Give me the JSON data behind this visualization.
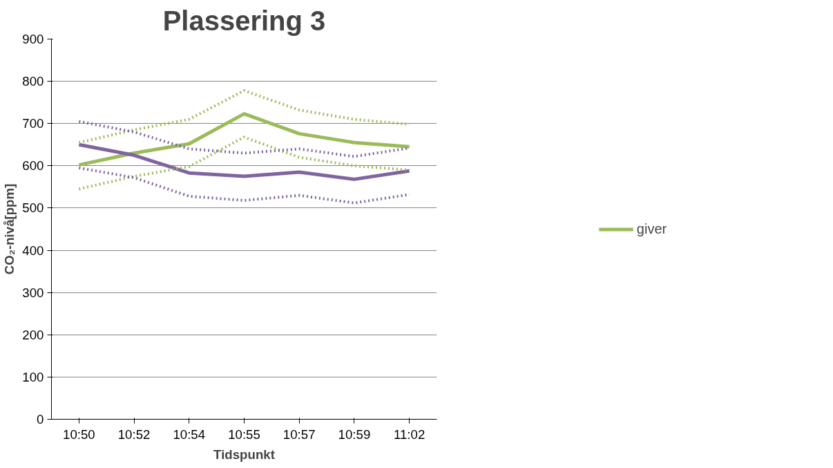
{
  "chart_data": {
    "type": "line",
    "title": "Plassering 3",
    "xlabel": "Tidspunkt",
    "ylabel": "CO₂-nivå[ppm]",
    "categories": [
      "10:50",
      "10:52",
      "10:54",
      "10:55",
      "10:57",
      "10:59",
      "11:02"
    ],
    "series": [
      {
        "name": "giver",
        "color": "#9bbb59",
        "values": [
          602,
          630,
          652,
          723,
          676,
          655,
          645
        ]
      },
      {
        "color": "#8064a2",
        "values": [
          650,
          625,
          583,
          575,
          585,
          568,
          588
        ]
      },
      {
        "color": "#9bbb59",
        "line_style": "dotted",
        "values": [
          655,
          685,
          710,
          778,
          732,
          710,
          698
        ]
      },
      {
        "color": "#9bbb59",
        "line_style": "dotted",
        "values": [
          545,
          575,
          598,
          668,
          620,
          600,
          590
        ]
      },
      {
        "color": "#8064a2",
        "line_style": "dotted",
        "values": [
          705,
          680,
          640,
          630,
          640,
          622,
          642
        ]
      },
      {
        "color": "#8064a2",
        "line_style": "dotted",
        "values": [
          595,
          572,
          528,
          518,
          530,
          512,
          532
        ]
      }
    ],
    "ylim": [
      0,
      900
    ],
    "yticks": [
      0,
      100,
      200,
      300,
      400,
      500,
      600,
      700,
      800,
      900
    ],
    "grid": "y",
    "legend": "right",
    "marker": "none",
    "line_style": "solid"
  }
}
